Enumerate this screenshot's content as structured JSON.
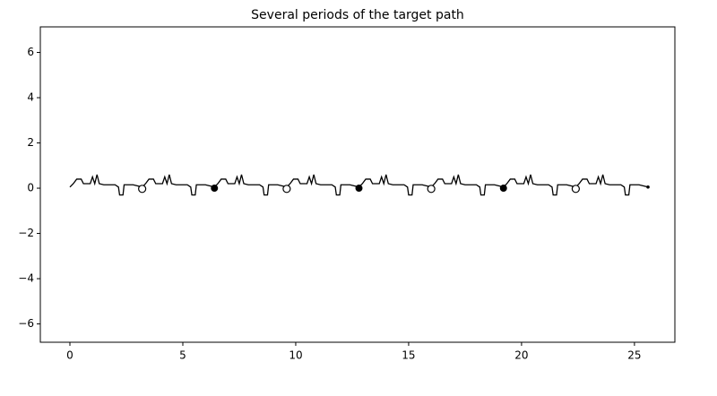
{
  "chart_data": {
    "type": "line",
    "title": "Several periods of the target path",
    "xlim": [
      -1.31,
      26.79
    ],
    "ylim": [
      -6.81,
      7.13
    ],
    "xticks": [
      0,
      5,
      10,
      15,
      20,
      25
    ],
    "yticks": [
      {
        "value": -6,
        "label": "−6"
      },
      {
        "value": -4,
        "label": "−4"
      },
      {
        "value": -2,
        "label": "−2"
      },
      0,
      2,
      4,
      6
    ],
    "series": [
      {
        "name": "path",
        "color": "#000000",
        "marker": "none",
        "x": [
          0,
          0.15,
          0.3,
          0.5,
          0.6,
          0.9,
          1.0,
          1.1,
          1.2,
          1.3,
          1.5,
          2.0,
          2.15,
          2.2,
          2.35,
          2.4,
          2.8,
          3.0,
          3.2,
          3.35,
          3.5,
          3.7,
          3.8,
          4.1,
          4.2,
          4.3,
          4.4,
          4.5,
          4.7,
          5.2,
          5.35,
          5.4,
          5.55,
          5.6,
          6.0,
          6.2,
          6.4,
          6.55,
          6.7,
          6.9,
          7.0,
          7.3,
          7.4,
          7.5,
          7.6,
          7.7,
          7.9,
          8.4,
          8.55,
          8.6,
          8.75,
          8.8,
          9.2,
          9.4,
          9.6,
          9.75,
          9.9,
          10.1,
          10.2,
          10.5,
          10.6,
          10.7,
          10.8,
          10.9,
          11.1,
          11.6,
          11.75,
          11.8,
          11.95,
          12.0,
          12.4,
          12.6,
          12.8,
          12.95,
          13.1,
          13.3,
          13.4,
          13.7,
          13.8,
          13.9,
          14.0,
          14.1,
          14.3,
          14.8,
          14.95,
          15.0,
          15.15,
          15.2,
          15.6,
          15.8,
          16.0,
          16.15,
          16.3,
          16.5,
          16.6,
          16.9,
          17.0,
          17.1,
          17.2,
          17.3,
          17.5,
          18.0,
          18.15,
          18.2,
          18.35,
          18.4,
          18.8,
          19.0,
          19.2,
          19.35,
          19.5,
          19.7,
          19.8,
          20.1,
          20.2,
          20.3,
          20.4,
          20.5,
          20.7,
          21.2,
          21.35,
          21.4,
          21.55,
          21.6,
          22.0,
          22.2,
          22.4,
          22.55,
          22.7,
          22.9,
          23.0,
          23.3,
          23.4,
          23.5,
          23.6,
          23.7,
          23.9,
          24.4,
          24.55,
          24.6,
          24.75,
          24.8,
          25.2,
          25.4,
          25.6
        ],
        "values": [
          0.05,
          0.2,
          0.4,
          0.4,
          0.2,
          0.2,
          0.5,
          0.2,
          0.6,
          0.2,
          0.15,
          0.15,
          0.05,
          -0.3,
          -0.3,
          0.15,
          0.15,
          0.1,
          0.05,
          0.2,
          0.4,
          0.4,
          0.2,
          0.2,
          0.5,
          0.2,
          0.6,
          0.2,
          0.15,
          0.15,
          0.05,
          -0.3,
          -0.3,
          0.15,
          0.15,
          0.1,
          0.05,
          0.2,
          0.4,
          0.4,
          0.2,
          0.2,
          0.5,
          0.2,
          0.6,
          0.2,
          0.15,
          0.15,
          0.05,
          -0.3,
          -0.3,
          0.15,
          0.15,
          0.1,
          0.05,
          0.2,
          0.4,
          0.4,
          0.2,
          0.2,
          0.5,
          0.2,
          0.6,
          0.2,
          0.15,
          0.15,
          0.05,
          -0.3,
          -0.3,
          0.15,
          0.15,
          0.1,
          0.05,
          0.2,
          0.4,
          0.4,
          0.2,
          0.2,
          0.5,
          0.2,
          0.6,
          0.2,
          0.15,
          0.15,
          0.05,
          -0.3,
          -0.3,
          0.15,
          0.15,
          0.1,
          0.05,
          0.2,
          0.4,
          0.4,
          0.2,
          0.2,
          0.5,
          0.2,
          0.6,
          0.2,
          0.15,
          0.15,
          0.05,
          -0.3,
          -0.3,
          0.15,
          0.15,
          0.1,
          0.05,
          0.2,
          0.4,
          0.4,
          0.2,
          0.2,
          0.5,
          0.2,
          0.6,
          0.2,
          0.15,
          0.15,
          0.05,
          -0.3,
          -0.3,
          0.15,
          0.15,
          0.1,
          0.05,
          0.2,
          0.4,
          0.4,
          0.2,
          0.2,
          0.5,
          0.2,
          0.6,
          0.2,
          0.15,
          0.15,
          0.05,
          -0.3,
          -0.3,
          0.15,
          0.15,
          0.1,
          0.05
        ]
      },
      {
        "name": "filled points",
        "color": "#000000",
        "marker": "filled",
        "x": [
          6.4,
          12.8,
          19.2
        ],
        "values": [
          0,
          0,
          0
        ]
      },
      {
        "name": "open points",
        "color": "#000000",
        "marker": "open",
        "x": [
          3.2,
          9.6,
          16.0,
          22.4
        ],
        "values": [
          -0.03,
          -0.03,
          -0.03,
          -0.03
        ]
      },
      {
        "name": "end point",
        "color": "#000000",
        "marker": "small",
        "x": [
          25.6
        ],
        "values": [
          0.05
        ]
      }
    ]
  }
}
